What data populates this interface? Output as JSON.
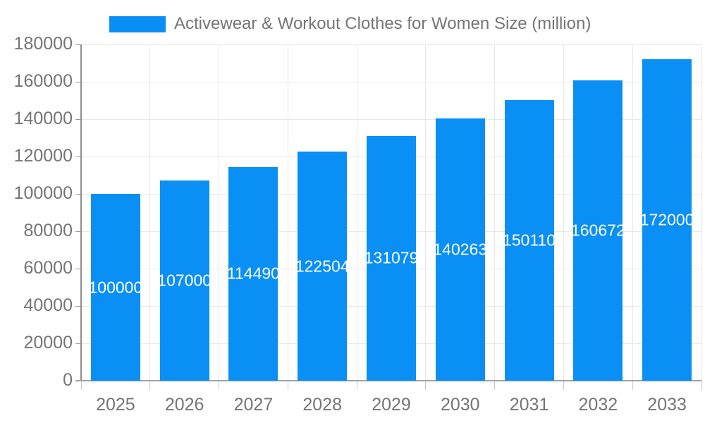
{
  "chart_data": {
    "type": "bar",
    "title": "Activewear & Workout Clothes for Women Size (million)",
    "categories": [
      "2025",
      "2026",
      "2027",
      "2028",
      "2029",
      "2030",
      "2031",
      "2032",
      "2033"
    ],
    "values": [
      100000,
      107000,
      114490,
      122504,
      131079,
      140263,
      150110,
      160672,
      172000
    ],
    "xlabel": "",
    "ylabel": "",
    "ylim": [
      0,
      180000
    ],
    "ytick_step": 20000,
    "ytick_labels": [
      "0",
      "20000",
      "40000",
      "60000",
      "80000",
      "100000",
      "120000",
      "140000",
      "160000",
      "180000"
    ],
    "grid": true,
    "legend_position": "top",
    "bar_color": "#0a8ff5",
    "bar_label_color": "#ffffff",
    "axis_text_color": "#757575",
    "grid_color": "#e8e8e8"
  }
}
